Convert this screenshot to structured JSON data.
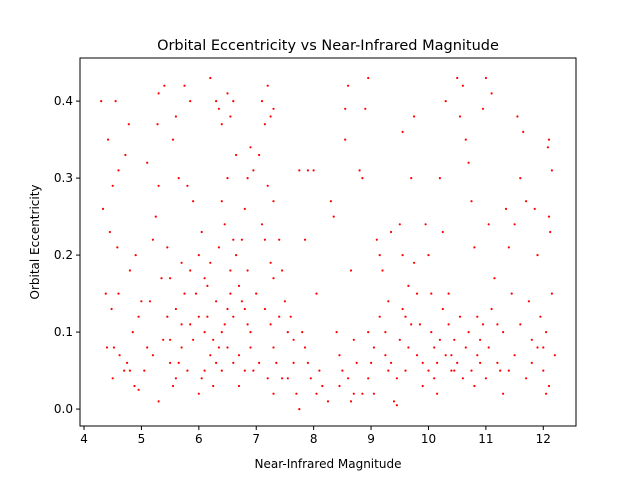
{
  "chart_data": {
    "type": "scatter",
    "title": "Orbital Eccentricity vs Near-Infrared Magnitude",
    "xlabel": "Near-Infrared Magnitude",
    "ylabel": "Orbital Eccentricity",
    "xlim": [
      3.93,
      12.57
    ],
    "ylim": [
      -0.022,
      0.456
    ],
    "xticks": [
      4,
      5,
      6,
      7,
      8,
      9,
      10,
      11,
      12
    ],
    "yticks": [
      0.0,
      0.1,
      0.2,
      0.3,
      0.4
    ],
    "ytick_labels": [
      "0.0",
      "0.1",
      "0.2",
      "0.3",
      "0.4"
    ],
    "grid": false,
    "marker_color": "#ff0000",
    "points": [
      [
        4.3,
        0.4
      ],
      [
        4.42,
        0.35
      ],
      [
        4.55,
        0.4
      ],
      [
        4.78,
        0.37
      ],
      [
        4.33,
        0.26
      ],
      [
        4.5,
        0.29
      ],
      [
        4.6,
        0.31
      ],
      [
        4.72,
        0.33
      ],
      [
        4.45,
        0.23
      ],
      [
        4.58,
        0.21
      ],
      [
        4.38,
        0.15
      ],
      [
        4.48,
        0.13
      ],
      [
        4.52,
        0.08
      ],
      [
        4.62,
        0.07
      ],
      [
        4.7,
        0.05
      ],
      [
        4.5,
        0.04
      ],
      [
        4.75,
        0.06
      ],
      [
        4.85,
        0.1
      ],
      [
        4.95,
        0.12
      ],
      [
        4.8,
        0.18
      ],
      [
        4.9,
        0.2
      ],
      [
        4.88,
        0.03
      ],
      [
        4.95,
        0.025
      ],
      [
        5.05,
        0.05
      ],
      [
        5.1,
        0.08
      ],
      [
        5.15,
        0.14
      ],
      [
        5.2,
        0.22
      ],
      [
        5.25,
        0.25
      ],
      [
        5.1,
        0.32
      ],
      [
        5.3,
        0.29
      ],
      [
        5.28,
        0.37
      ],
      [
        5.3,
        0.41
      ],
      [
        5.4,
        0.42
      ],
      [
        5.6,
        0.38
      ],
      [
        5.75,
        0.42
      ],
      [
        5.85,
        0.4
      ],
      [
        5.65,
        0.3
      ],
      [
        5.55,
        0.35
      ],
      [
        5.8,
        0.29
      ],
      [
        5.9,
        0.27
      ],
      [
        5.7,
        0.19
      ],
      [
        5.5,
        0.17
      ],
      [
        5.45,
        0.12
      ],
      [
        5.38,
        0.09
      ],
      [
        5.5,
        0.06
      ],
      [
        5.6,
        0.04
      ],
      [
        5.3,
        0.01
      ],
      [
        5.55,
        0.03
      ],
      [
        5.7,
        0.08
      ],
      [
        5.85,
        0.11
      ],
      [
        5.95,
        0.15
      ],
      [
        6.0,
        0.2
      ],
      [
        6.05,
        0.23
      ],
      [
        6.1,
        0.17
      ],
      [
        6.15,
        0.12
      ],
      [
        6.2,
        0.07
      ],
      [
        6.1,
        0.05
      ],
      [
        6.0,
        0.02
      ],
      [
        6.25,
        0.03
      ],
      [
        6.3,
        0.06
      ],
      [
        6.2,
        0.43
      ],
      [
        6.3,
        0.4
      ],
      [
        6.35,
        0.39
      ],
      [
        6.4,
        0.37
      ],
      [
        6.5,
        0.41
      ],
      [
        6.55,
        0.38
      ],
      [
        6.6,
        0.4
      ],
      [
        6.65,
        0.33
      ],
      [
        6.5,
        0.3
      ],
      [
        6.4,
        0.27
      ],
      [
        6.45,
        0.24
      ],
      [
        6.6,
        0.22
      ],
      [
        6.55,
        0.18
      ],
      [
        6.7,
        0.16
      ],
      [
        6.5,
        0.13
      ],
      [
        6.4,
        0.1
      ],
      [
        6.35,
        0.08
      ],
      [
        6.6,
        0.06
      ],
      [
        6.7,
        0.03
      ],
      [
        6.8,
        0.05
      ],
      [
        6.9,
        0.08
      ],
      [
        6.85,
        0.11
      ],
      [
        6.75,
        0.14
      ],
      [
        6.8,
        0.26
      ],
      [
        6.85,
        0.3
      ],
      [
        6.9,
        0.34
      ],
      [
        6.95,
        0.31
      ],
      [
        7.05,
        0.33
      ],
      [
        7.1,
        0.4
      ],
      [
        7.15,
        0.37
      ],
      [
        7.2,
        0.42
      ],
      [
        7.25,
        0.38
      ],
      [
        7.3,
        0.39
      ],
      [
        7.2,
        0.29
      ],
      [
        7.3,
        0.27
      ],
      [
        7.1,
        0.24
      ],
      [
        7.15,
        0.22
      ],
      [
        7.25,
        0.19
      ],
      [
        7.3,
        0.17
      ],
      [
        7.15,
        0.13
      ],
      [
        7.25,
        0.11
      ],
      [
        7.3,
        0.08
      ],
      [
        7.05,
        0.06
      ],
      [
        7.2,
        0.04
      ],
      [
        7.3,
        0.02
      ],
      [
        7.4,
        0.22
      ],
      [
        7.45,
        0.18
      ],
      [
        7.5,
        0.14
      ],
      [
        7.55,
        0.1
      ],
      [
        7.6,
        0.12
      ],
      [
        7.65,
        0.06
      ],
      [
        7.55,
        0.04
      ],
      [
        7.7,
        0.02
      ],
      [
        7.75,
        0.31
      ],
      [
        7.9,
        0.31
      ],
      [
        7.85,
        0.22
      ],
      [
        7.8,
        0.1
      ],
      [
        7.9,
        0.06
      ],
      [
        7.75,
        0.0
      ],
      [
        8.0,
        0.31
      ],
      [
        8.05,
        0.15
      ],
      [
        8.1,
        0.05
      ],
      [
        8.15,
        0.03
      ],
      [
        8.3,
        0.27
      ],
      [
        8.35,
        0.25
      ],
      [
        8.4,
        0.1
      ],
      [
        8.45,
        0.07
      ],
      [
        8.5,
        0.05
      ],
      [
        8.55,
        0.39
      ],
      [
        8.6,
        0.42
      ],
      [
        8.55,
        0.35
      ],
      [
        8.65,
        0.18
      ],
      [
        8.7,
        0.09
      ],
      [
        8.6,
        0.04
      ],
      [
        8.7,
        0.02
      ],
      [
        8.8,
        0.31
      ],
      [
        8.85,
        0.3
      ],
      [
        8.9,
        0.39
      ],
      [
        8.95,
        0.43
      ],
      [
        8.95,
        0.1
      ],
      [
        9.0,
        0.06
      ],
      [
        9.05,
        0.02
      ],
      [
        9.1,
        0.22
      ],
      [
        9.15,
        0.2
      ],
      [
        9.2,
        0.18
      ],
      [
        9.25,
        0.07
      ],
      [
        9.3,
        0.05
      ],
      [
        9.3,
        0.14
      ],
      [
        9.35,
        0.23
      ],
      [
        9.4,
        0.01
      ],
      [
        9.45,
        0.005
      ],
      [
        9.5,
        0.24
      ],
      [
        9.55,
        0.2
      ],
      [
        9.55,
        0.36
      ],
      [
        9.6,
        0.12
      ],
      [
        9.65,
        0.08
      ],
      [
        9.7,
        0.3
      ],
      [
        9.75,
        0.19
      ],
      [
        9.8,
        0.15
      ],
      [
        9.75,
        0.38
      ],
      [
        9.85,
        0.11
      ],
      [
        9.9,
        0.06
      ],
      [
        9.95,
        0.24
      ],
      [
        10.0,
        0.2
      ],
      [
        10.05,
        0.1
      ],
      [
        10.1,
        0.04
      ],
      [
        10.15,
        0.02
      ],
      [
        10.2,
        0.3
      ],
      [
        10.25,
        0.23
      ],
      [
        10.3,
        0.4
      ],
      [
        10.35,
        0.15
      ],
      [
        10.4,
        0.07
      ],
      [
        10.45,
        0.05
      ],
      [
        10.5,
        0.43
      ],
      [
        10.55,
        0.38
      ],
      [
        10.6,
        0.42
      ],
      [
        10.65,
        0.35
      ],
      [
        10.7,
        0.32
      ],
      [
        10.75,
        0.27
      ],
      [
        10.8,
        0.21
      ],
      [
        10.85,
        0.12
      ],
      [
        10.9,
        0.09
      ],
      [
        10.95,
        0.39
      ],
      [
        11.0,
        0.43
      ],
      [
        11.05,
        0.24
      ],
      [
        11.1,
        0.41
      ],
      [
        11.15,
        0.17
      ],
      [
        11.2,
        0.11
      ],
      [
        11.25,
        0.05
      ],
      [
        11.3,
        0.02
      ],
      [
        11.35,
        0.26
      ],
      [
        11.4,
        0.21
      ],
      [
        11.45,
        0.15
      ],
      [
        11.5,
        0.24
      ],
      [
        11.55,
        0.38
      ],
      [
        11.6,
        0.3
      ],
      [
        11.65,
        0.36
      ],
      [
        11.7,
        0.27
      ],
      [
        11.75,
        0.14
      ],
      [
        11.8,
        0.09
      ],
      [
        11.85,
        0.26
      ],
      [
        11.9,
        0.2
      ],
      [
        11.95,
        0.12
      ],
      [
        12.0,
        0.05
      ],
      [
        12.05,
        0.02
      ],
      [
        12.08,
        0.34
      ],
      [
        12.1,
        0.35
      ],
      [
        12.15,
        0.31
      ],
      [
        12.1,
        0.25
      ],
      [
        12.12,
        0.23
      ],
      [
        12.15,
        0.15
      ],
      [
        12.05,
        0.1
      ],
      [
        12.0,
        0.08
      ],
      [
        12.1,
        0.03
      ],
      [
        12.2,
        0.07
      ],
      [
        4.4,
        0.08
      ],
      [
        4.6,
        0.15
      ],
      [
        4.8,
        0.05
      ],
      [
        5.0,
        0.14
      ],
      [
        5.2,
        0.07
      ],
      [
        5.35,
        0.17
      ],
      [
        5.45,
        0.21
      ],
      [
        5.5,
        0.09
      ],
      [
        5.6,
        0.13
      ],
      [
        5.65,
        0.06
      ],
      [
        5.7,
        0.11
      ],
      [
        5.75,
        0.15
      ],
      [
        5.8,
        0.05
      ],
      [
        5.85,
        0.18
      ],
      [
        5.9,
        0.09
      ],
      [
        6.0,
        0.12
      ],
      [
        6.05,
        0.04
      ],
      [
        6.1,
        0.1
      ],
      [
        6.15,
        0.16
      ],
      [
        6.2,
        0.19
      ],
      [
        6.25,
        0.09
      ],
      [
        6.3,
        0.14
      ],
      [
        6.35,
        0.21
      ],
      [
        6.4,
        0.05
      ],
      [
        6.45,
        0.11
      ],
      [
        6.5,
        0.08
      ],
      [
        6.55,
        0.15
      ],
      [
        6.6,
        0.12
      ],
      [
        6.65,
        0.2
      ],
      [
        6.7,
        0.07
      ],
      [
        6.75,
        0.22
      ],
      [
        6.8,
        0.13
      ],
      [
        6.85,
        0.18
      ],
      [
        6.9,
        0.1
      ],
      [
        6.95,
        0.05
      ],
      [
        7.0,
        0.15
      ],
      [
        10.1,
        0.08
      ],
      [
        10.15,
        0.06
      ],
      [
        10.2,
        0.09
      ],
      [
        10.25,
        0.13
      ],
      [
        10.3,
        0.07
      ],
      [
        10.35,
        0.11
      ],
      [
        10.4,
        0.05
      ],
      [
        10.45,
        0.09
      ],
      [
        10.5,
        0.06
      ],
      [
        10.55,
        0.12
      ],
      [
        10.6,
        0.04
      ],
      [
        10.65,
        0.08
      ],
      [
        10.7,
        0.1
      ],
      [
        10.75,
        0.05
      ],
      [
        10.8,
        0.03
      ],
      [
        10.85,
        0.07
      ],
      [
        10.9,
        0.06
      ],
      [
        10.95,
        0.11
      ],
      [
        11.0,
        0.04
      ],
      [
        11.05,
        0.08
      ],
      [
        11.1,
        0.13
      ],
      [
        11.2,
        0.06
      ],
      [
        11.3,
        0.1
      ],
      [
        11.4,
        0.05
      ],
      [
        11.5,
        0.07
      ],
      [
        11.6,
        0.11
      ],
      [
        11.7,
        0.04
      ],
      [
        11.8,
        0.06
      ],
      [
        11.9,
        0.08
      ],
      [
        9.5,
        0.09
      ],
      [
        9.6,
        0.05
      ],
      [
        9.7,
        0.11
      ],
      [
        9.8,
        0.07
      ],
      [
        9.9,
        0.03
      ],
      [
        10.0,
        0.05
      ],
      [
        10.05,
        0.15
      ],
      [
        9.45,
        0.04
      ],
      [
        9.55,
        0.13
      ],
      [
        9.65,
        0.16
      ],
      [
        9.35,
        0.06
      ],
      [
        9.25,
        0.1
      ],
      [
        9.15,
        0.12
      ],
      [
        9.05,
        0.08
      ],
      [
        8.95,
        0.04
      ],
      [
        8.85,
        0.02
      ],
      [
        8.75,
        0.06
      ],
      [
        8.65,
        0.01
      ],
      [
        8.45,
        0.03
      ],
      [
        8.25,
        0.01
      ],
      [
        8.05,
        0.02
      ],
      [
        7.95,
        0.04
      ],
      [
        7.85,
        0.08
      ],
      [
        7.65,
        0.09
      ],
      [
        7.45,
        0.04
      ],
      [
        7.35,
        0.06
      ],
      [
        7.4,
        0.12
      ]
    ]
  }
}
